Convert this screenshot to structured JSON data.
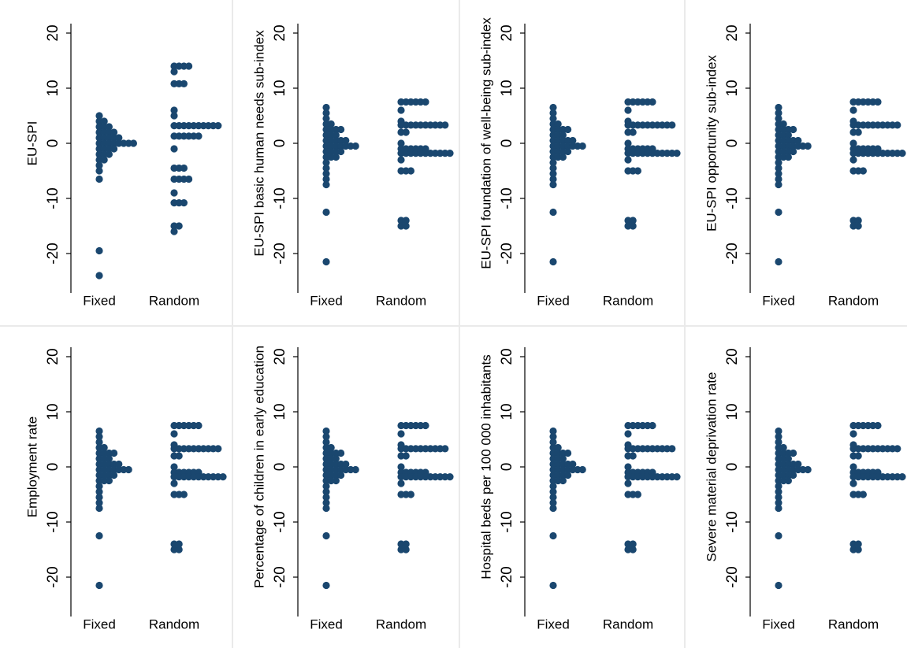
{
  "chart_data": [
    {
      "type": "dotplot",
      "ylabel": "EU-SPI",
      "categories": [
        "Fixed",
        "Random"
      ],
      "ylim": [
        -25,
        22
      ],
      "yticks": [
        -20,
        -10,
        0,
        10,
        20
      ],
      "color": "#1a476f",
      "groups": [
        {
          "y": [
            5,
            4,
            3,
            2,
            1,
            0,
            -1,
            -2,
            -3,
            -4,
            -5,
            -6.5,
            -19.5,
            -24
          ],
          "counts": [
            1,
            2,
            3,
            4,
            5,
            8,
            4,
            3,
            2,
            1,
            1,
            1,
            1,
            1
          ]
        },
        {
          "y": [
            14,
            13,
            10.8,
            6,
            5,
            3.2,
            1.3,
            -1,
            -4.5,
            -6.5,
            -9,
            -10.8,
            -15,
            -16
          ],
          "counts": [
            4,
            1,
            3,
            1,
            1,
            10,
            6,
            1,
            3,
            4,
            1,
            3,
            2,
            1
          ]
        }
      ]
    },
    {
      "type": "dotplot",
      "ylabel": "EU-SPI basic human needs sub-index",
      "categories": [
        "Fixed",
        "Random"
      ],
      "ylim": [
        -25,
        22
      ],
      "yticks": [
        -20,
        -10,
        0,
        10,
        20
      ],
      "color": "#1a476f",
      "groups": [
        {
          "y": [
            6.5,
            5.5,
            4.5,
            3.5,
            2.5,
            1.5,
            0.5,
            -0.5,
            -1.5,
            -2.5,
            -3.5,
            -4.5,
            -5.5,
            -6.5,
            -7.5,
            -12.5,
            -21.5
          ],
          "counts": [
            1,
            1,
            1,
            2,
            4,
            3,
            5,
            7,
            4,
            3,
            1,
            1,
            1,
            1,
            1,
            1,
            1
          ]
        },
        {
          "y": [
            7.5,
            6,
            4,
            3.3,
            2,
            0,
            -1,
            -1.8,
            -3,
            -5,
            -14,
            -15
          ],
          "counts": [
            6,
            1,
            1,
            10,
            2,
            1,
            6,
            11,
            1,
            3,
            2,
            2
          ]
        }
      ]
    },
    {
      "type": "dotplot",
      "ylabel": "EU-SPI foundation of well-being sub-index",
      "categories": [
        "Fixed",
        "Random"
      ],
      "ylim": [
        -25,
        22
      ],
      "yticks": [
        -20,
        -10,
        0,
        10,
        20
      ],
      "color": "#1a476f",
      "groups": [
        {
          "y": [
            6.5,
            5.5,
            4.5,
            3.5,
            2.5,
            1.5,
            0.5,
            -0.5,
            -1.5,
            -2.5,
            -3.5,
            -4.5,
            -5.5,
            -6.5,
            -7.5,
            -12.5,
            -21.5
          ],
          "counts": [
            1,
            1,
            1,
            2,
            4,
            3,
            5,
            7,
            4,
            3,
            1,
            1,
            1,
            1,
            1,
            1,
            1
          ]
        },
        {
          "y": [
            7.5,
            6,
            4,
            3.3,
            2,
            0,
            -1,
            -1.8,
            -3,
            -5,
            -14,
            -15
          ],
          "counts": [
            6,
            1,
            1,
            10,
            2,
            1,
            6,
            11,
            1,
            3,
            2,
            2
          ]
        }
      ]
    },
    {
      "type": "dotplot",
      "ylabel": "EU-SPI opportunity sub-index",
      "categories": [
        "Fixed",
        "Random"
      ],
      "ylim": [
        -25,
        22
      ],
      "yticks": [
        -20,
        -10,
        0,
        10,
        20
      ],
      "color": "#1a476f",
      "groups": [
        {
          "y": [
            6.5,
            5.5,
            4.5,
            3.5,
            2.5,
            1.5,
            0.5,
            -0.5,
            -1.5,
            -2.5,
            -3.5,
            -4.5,
            -5.5,
            -6.5,
            -7.5,
            -12.5,
            -21.5
          ],
          "counts": [
            1,
            1,
            1,
            2,
            4,
            3,
            5,
            7,
            4,
            3,
            1,
            1,
            1,
            1,
            1,
            1,
            1
          ]
        },
        {
          "y": [
            7.5,
            6,
            4,
            3.3,
            2,
            0,
            -1,
            -1.8,
            -3,
            -5,
            -14,
            -15
          ],
          "counts": [
            6,
            1,
            1,
            10,
            2,
            1,
            6,
            11,
            1,
            3,
            2,
            2
          ]
        }
      ]
    },
    {
      "type": "dotplot",
      "ylabel": "Employment rate",
      "categories": [
        "Fixed",
        "Random"
      ],
      "ylim": [
        -25,
        22
      ],
      "yticks": [
        -20,
        -10,
        0,
        10,
        20
      ],
      "color": "#1a476f",
      "groups": [
        {
          "y": [
            6.5,
            5.5,
            4.5,
            3.5,
            2.5,
            1.5,
            0.5,
            -0.5,
            -1.5,
            -2.5,
            -3.5,
            -4.5,
            -5.5,
            -6.5,
            -7.5,
            -12.5,
            -21.5
          ],
          "counts": [
            1,
            1,
            1,
            2,
            4,
            3,
            5,
            7,
            4,
            3,
            1,
            1,
            1,
            1,
            1,
            1,
            1
          ]
        },
        {
          "y": [
            7.5,
            6,
            4,
            3.3,
            2,
            0,
            -1,
            -1.8,
            -3,
            -5,
            -14,
            -15
          ],
          "counts": [
            6,
            1,
            1,
            10,
            2,
            1,
            6,
            11,
            1,
            3,
            2,
            2
          ]
        }
      ]
    },
    {
      "type": "dotplot",
      "ylabel": "Percentage of children in early education",
      "categories": [
        "Fixed",
        "Random"
      ],
      "ylim": [
        -25,
        22
      ],
      "yticks": [
        -20,
        -10,
        0,
        10,
        20
      ],
      "color": "#1a476f",
      "groups": [
        {
          "y": [
            6.5,
            5.5,
            4.5,
            3.5,
            2.5,
            1.5,
            0.5,
            -0.5,
            -1.5,
            -2.5,
            -3.5,
            -4.5,
            -5.5,
            -6.5,
            -7.5,
            -12.5,
            -21.5
          ],
          "counts": [
            1,
            1,
            1,
            2,
            4,
            3,
            5,
            7,
            4,
            3,
            1,
            1,
            1,
            1,
            1,
            1,
            1
          ]
        },
        {
          "y": [
            7.5,
            6,
            4,
            3.3,
            2,
            0,
            -1,
            -1.8,
            -3,
            -5,
            -14,
            -15
          ],
          "counts": [
            6,
            1,
            1,
            10,
            2,
            1,
            6,
            11,
            1,
            3,
            2,
            2
          ]
        }
      ]
    },
    {
      "type": "dotplot",
      "ylabel": "Hospital beds per 100 000 inhabitants",
      "categories": [
        "Fixed",
        "Random"
      ],
      "ylim": [
        -25,
        22
      ],
      "yticks": [
        -20,
        -10,
        0,
        10,
        20
      ],
      "color": "#1a476f",
      "groups": [
        {
          "y": [
            6.5,
            5.5,
            4.5,
            3.5,
            2.5,
            1.5,
            0.5,
            -0.5,
            -1.5,
            -2.5,
            -3.5,
            -4.5,
            -5.5,
            -6.5,
            -7.5,
            -12.5,
            -21.5
          ],
          "counts": [
            1,
            1,
            1,
            2,
            4,
            3,
            5,
            7,
            4,
            3,
            1,
            1,
            1,
            1,
            1,
            1,
            1
          ]
        },
        {
          "y": [
            7.5,
            6,
            4,
            3.3,
            2,
            0,
            -1,
            -1.8,
            -3,
            -5,
            -14,
            -15
          ],
          "counts": [
            6,
            1,
            1,
            10,
            2,
            1,
            6,
            11,
            1,
            3,
            2,
            2
          ]
        }
      ]
    },
    {
      "type": "dotplot",
      "ylabel": "Severe material deprivation rate",
      "categories": [
        "Fixed",
        "Random"
      ],
      "ylim": [
        -25,
        22
      ],
      "yticks": [
        -20,
        -10,
        0,
        10,
        20
      ],
      "color": "#1a476f",
      "groups": [
        {
          "y": [
            6.5,
            5.5,
            4.5,
            3.5,
            2.5,
            1.5,
            0.5,
            -0.5,
            -1.5,
            -2.5,
            -3.5,
            -4.5,
            -5.5,
            -6.5,
            -7.5,
            -12.5,
            -21.5
          ],
          "counts": [
            1,
            1,
            1,
            2,
            4,
            3,
            5,
            7,
            4,
            3,
            1,
            1,
            1,
            1,
            1,
            1,
            1
          ]
        },
        {
          "y": [
            7.5,
            6,
            4,
            3.3,
            2,
            0,
            -1,
            -1.8,
            -3,
            -5,
            -14,
            -15
          ],
          "counts": [
            6,
            1,
            1,
            10,
            2,
            1,
            6,
            11,
            1,
            3,
            2,
            2
          ]
        }
      ]
    }
  ]
}
